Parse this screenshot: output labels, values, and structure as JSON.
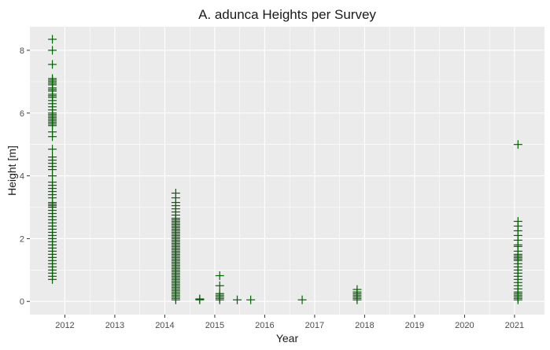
{
  "colors": {
    "panel": "#ebebeb",
    "grid": "#ffffff",
    "point": "#006400"
  },
  "chart_data": {
    "type": "scatter",
    "title": "A. adunca Heights per Survey",
    "xlabel": "Year",
    "ylabel": "Height [m]",
    "xlim": [
      2011.3,
      2021.6
    ],
    "ylim": [
      -0.42,
      8.75
    ],
    "x_ticks": [
      2012,
      2013,
      2014,
      2015,
      2016,
      2017,
      2018,
      2019,
      2020,
      2021
    ],
    "y_ticks": [
      0,
      2,
      4,
      6,
      8
    ],
    "marker": "plus",
    "grid": true,
    "legend": "none",
    "series": [
      {
        "x": [
          2011.75
        ],
        "heights": [
          8.35,
          8.0,
          7.55,
          7.1,
          7.05,
          7.0,
          6.95,
          6.9,
          6.8,
          6.75,
          6.7,
          6.6,
          6.55,
          6.5,
          6.4,
          6.3,
          6.2,
          6.1,
          6.0,
          5.95,
          5.9,
          5.85,
          5.8,
          5.75,
          5.7,
          5.65,
          5.6,
          5.4,
          5.25,
          4.85,
          4.6,
          4.5,
          4.4,
          4.3,
          4.2,
          4.0,
          3.8,
          3.7,
          3.6,
          3.5,
          3.4,
          3.3,
          3.15,
          3.1,
          3.05,
          3.0,
          2.9,
          2.8,
          2.7,
          2.6,
          2.5,
          2.4,
          2.3,
          2.2,
          2.1,
          2.0,
          1.9,
          1.8,
          1.7,
          1.6,
          1.5,
          1.4,
          1.3,
          1.2,
          1.1,
          1.0,
          0.9,
          0.8,
          0.7
        ]
      },
      {
        "x": [
          2014.22
        ],
        "heights": [
          3.45,
          3.3,
          3.15,
          3.05,
          2.95,
          2.85,
          2.75,
          2.65,
          2.6,
          2.55,
          2.5,
          2.45,
          2.4,
          2.35,
          2.3,
          2.25,
          2.2,
          2.15,
          2.1,
          2.05,
          2.0,
          1.95,
          1.9,
          1.85,
          1.8,
          1.75,
          1.7,
          1.65,
          1.6,
          1.55,
          1.5,
          1.45,
          1.4,
          1.35,
          1.3,
          1.25,
          1.2,
          1.15,
          1.1,
          1.05,
          1.0,
          0.95,
          0.9,
          0.85,
          0.8,
          0.75,
          0.7,
          0.65,
          0.6,
          0.55,
          0.5,
          0.45,
          0.4,
          0.35,
          0.3,
          0.25,
          0.2,
          0.15,
          0.1,
          0.05
        ]
      },
      {
        "x": [
          2014.7
        ],
        "heights": [
          0.08,
          0.06,
          0.05
        ]
      },
      {
        "x": [
          2015.1
        ],
        "heights": [
          0.82,
          0.5,
          0.25,
          0.2,
          0.15,
          0.1,
          0.05
        ]
      },
      {
        "x": [
          2015.45
        ],
        "heights": [
          0.05
        ]
      },
      {
        "x": [
          2015.72
        ],
        "heights": [
          0.05
        ]
      },
      {
        "x": [
          2016.75
        ],
        "heights": [
          0.05
        ]
      },
      {
        "x": [
          2017.85
        ],
        "heights": [
          0.38,
          0.3,
          0.25,
          0.2,
          0.15,
          0.1,
          0.05
        ]
      },
      {
        "x": [
          2021.07
        ],
        "heights": [
          5.0,
          2.55,
          2.4,
          2.25,
          2.1,
          1.95,
          1.8,
          1.75,
          1.6,
          1.5,
          1.45,
          1.4,
          1.35,
          1.3,
          1.2,
          1.1,
          1.0,
          0.9,
          0.8,
          0.7,
          0.6,
          0.5,
          0.4,
          0.3,
          0.25,
          0.2,
          0.15,
          0.1,
          0.05
        ]
      }
    ]
  }
}
